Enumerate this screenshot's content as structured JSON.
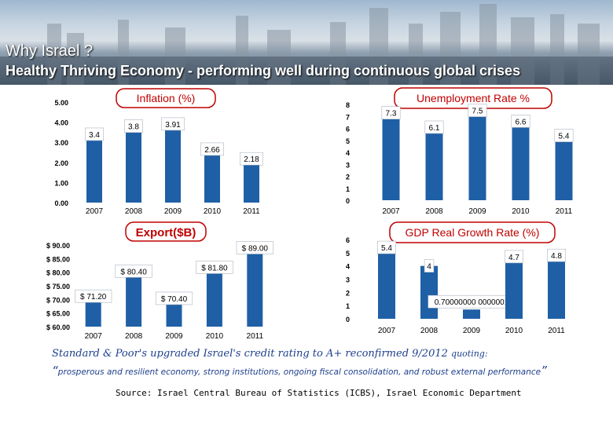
{
  "header": {
    "title": "Why Israel ?",
    "subtitle": "Healthy Thriving Economy - performing well during continuous global crises"
  },
  "colors": {
    "bar": "#1f5fa6",
    "title_border": "#c00000",
    "title_text": "#c00000"
  },
  "chart_data": [
    {
      "id": "inflation",
      "type": "bar",
      "title": "Inflation (%)",
      "categories": [
        "2007",
        "2008",
        "2009",
        "2010",
        "2011"
      ],
      "values": [
        3.4,
        3.8,
        3.91,
        2.66,
        2.18
      ],
      "data_labels": [
        "3.4",
        "3.8",
        "3.91",
        "2.66",
        "2.18"
      ],
      "y_ticks": [
        "0.00",
        "1.00",
        "2.00",
        "3.00",
        "4.00",
        "5.00"
      ],
      "ylim": [
        0,
        5
      ],
      "grid": false
    },
    {
      "id": "unemployment",
      "type": "bar",
      "title": "Unemployment Rate %",
      "categories": [
        "2007",
        "2008",
        "2009",
        "2010",
        "2011"
      ],
      "values": [
        7.3,
        6.1,
        7.5,
        6.6,
        5.4
      ],
      "data_labels": [
        "7.3",
        "6.1",
        "7.5",
        "6.6",
        "5.4"
      ],
      "y_ticks": [
        "0",
        "1",
        "2",
        "3",
        "4",
        "5",
        "6",
        "7",
        "8"
      ],
      "ylim": [
        0,
        8
      ],
      "grid": false
    },
    {
      "id": "export",
      "type": "bar",
      "title": "Export($B)",
      "categories": [
        "2007",
        "2008",
        "2009",
        "2010",
        "2011"
      ],
      "values": [
        71.2,
        80.4,
        70.4,
        81.8,
        89.0
      ],
      "data_labels": [
        "$ 71.20",
        "$ 80.40",
        "$ 70.40",
        "$ 81.80",
        "$ 89.00"
      ],
      "y_ticks": [
        "$ 60.00",
        "$ 65.00",
        "$ 70.00",
        "$ 75.00",
        "$ 80.00",
        "$ 85.00",
        "$ 90.00"
      ],
      "ylim": [
        60,
        90
      ],
      "grid": false
    },
    {
      "id": "gdp",
      "type": "bar",
      "title": "GDP Real Growth Rate (%)",
      "categories": [
        "2007",
        "2008",
        "2009",
        "2010",
        "2011"
      ],
      "values": [
        5.4,
        4,
        0.7,
        4.7,
        4.8
      ],
      "data_labels": [
        "5.4",
        "4",
        "0.70000000 0000001",
        "4.7",
        "4.8"
      ],
      "y_ticks": [
        "0",
        "1",
        "2",
        "3",
        "4",
        "5",
        "6"
      ],
      "ylim": [
        0,
        6
      ],
      "grid": false
    }
  ],
  "footer": {
    "line1_main": "Standard & Poor's upgraded Israel's credit rating to A+ reconfirmed 9/2012",
    "line1_tail": "quoting:",
    "open_quote": "“",
    "line2_text": "prosperous and resilient economy, strong institutions, ongoing fiscal consolidation, and robust external performance",
    "close_quote": "”",
    "source": "Source: Israel Central Bureau of Statistics (ICBS), Israel Economic Department"
  }
}
